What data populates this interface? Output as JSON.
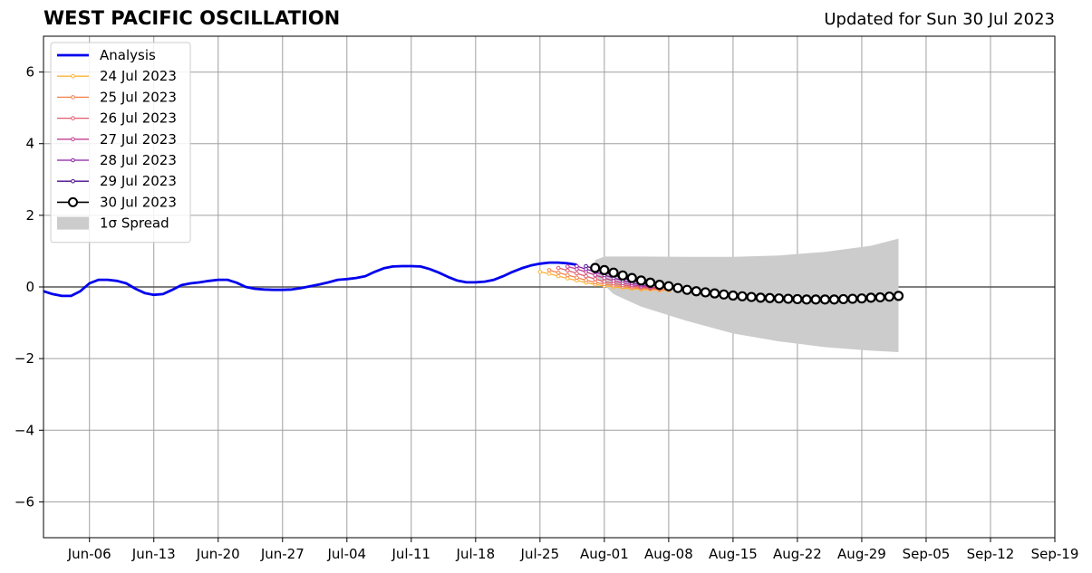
{
  "title": "WEST PACIFIC OSCILLATION",
  "subtitle": "Updated for Sun 30 Jul 2023",
  "chart_data": {
    "type": "line",
    "title": "WEST PACIFIC OSCILLATION",
    "xlabel": "",
    "ylabel": "",
    "x_range": [
      "2023-06-01",
      "2023-09-19"
    ],
    "ylim": [
      -7,
      7
    ],
    "grid": true,
    "legend_position": "top-left",
    "x_ticks": [
      "Jun-06",
      "Jun-13",
      "Jun-20",
      "Jun-27",
      "Jul-04",
      "Jul-11",
      "Jul-18",
      "Jul-25",
      "Aug-01",
      "Aug-08",
      "Aug-15",
      "Aug-22",
      "Aug-29",
      "Sep-05",
      "Sep-12",
      "Sep-19"
    ],
    "x_tick_dates": [
      "2023-06-06",
      "2023-06-13",
      "2023-06-20",
      "2023-06-27",
      "2023-07-04",
      "2023-07-11",
      "2023-07-18",
      "2023-07-25",
      "2023-08-01",
      "2023-08-08",
      "2023-08-15",
      "2023-08-22",
      "2023-08-29",
      "2023-09-05",
      "2023-09-12",
      "2023-09-19"
    ],
    "y_ticks": [
      -6,
      -4,
      -2,
      0,
      2,
      4,
      6
    ],
    "y_tick_labels": [
      "−6",
      "−4",
      "−2",
      "0",
      "2",
      "4",
      "6"
    ],
    "zero_line": 0,
    "analysis": {
      "name": "Analysis",
      "color": "#0000ee",
      "points": [
        [
          "2023-06-01",
          -0.12
        ],
        [
          "2023-06-02",
          -0.2
        ],
        [
          "2023-06-03",
          -0.25
        ],
        [
          "2023-06-04",
          -0.25
        ],
        [
          "2023-06-05",
          -0.12
        ],
        [
          "2023-06-06",
          0.1
        ],
        [
          "2023-06-07",
          0.2
        ],
        [
          "2023-06-08",
          0.2
        ],
        [
          "2023-06-09",
          0.17
        ],
        [
          "2023-06-10",
          0.1
        ],
        [
          "2023-06-11",
          -0.05
        ],
        [
          "2023-06-12",
          -0.17
        ],
        [
          "2023-06-13",
          -0.22
        ],
        [
          "2023-06-14",
          -0.2
        ],
        [
          "2023-06-15",
          -0.08
        ],
        [
          "2023-06-16",
          0.05
        ],
        [
          "2023-06-17",
          0.1
        ],
        [
          "2023-06-18",
          0.13
        ],
        [
          "2023-06-19",
          0.17
        ],
        [
          "2023-06-20",
          0.2
        ],
        [
          "2023-06-21",
          0.2
        ],
        [
          "2023-06-22",
          0.12
        ],
        [
          "2023-06-23",
          0.0
        ],
        [
          "2023-06-24",
          -0.05
        ],
        [
          "2023-06-25",
          -0.07
        ],
        [
          "2023-06-26",
          -0.08
        ],
        [
          "2023-06-27",
          -0.08
        ],
        [
          "2023-06-28",
          -0.07
        ],
        [
          "2023-06-29",
          -0.03
        ],
        [
          "2023-06-30",
          0.02
        ],
        [
          "2023-07-01",
          0.07
        ],
        [
          "2023-07-02",
          0.13
        ],
        [
          "2023-07-03",
          0.2
        ],
        [
          "2023-07-04",
          0.22
        ],
        [
          "2023-07-05",
          0.25
        ],
        [
          "2023-07-06",
          0.3
        ],
        [
          "2023-07-07",
          0.42
        ],
        [
          "2023-07-08",
          0.52
        ],
        [
          "2023-07-09",
          0.57
        ],
        [
          "2023-07-10",
          0.58
        ],
        [
          "2023-07-11",
          0.58
        ],
        [
          "2023-07-12",
          0.57
        ],
        [
          "2023-07-13",
          0.5
        ],
        [
          "2023-07-14",
          0.4
        ],
        [
          "2023-07-15",
          0.28
        ],
        [
          "2023-07-16",
          0.18
        ],
        [
          "2023-07-17",
          0.13
        ],
        [
          "2023-07-18",
          0.13
        ],
        [
          "2023-07-19",
          0.15
        ],
        [
          "2023-07-20",
          0.2
        ],
        [
          "2023-07-21",
          0.3
        ],
        [
          "2023-07-22",
          0.42
        ],
        [
          "2023-07-23",
          0.52
        ],
        [
          "2023-07-24",
          0.6
        ],
        [
          "2023-07-25",
          0.65
        ],
        [
          "2023-07-26",
          0.68
        ],
        [
          "2023-07-27",
          0.68
        ],
        [
          "2023-07-28",
          0.66
        ],
        [
          "2023-07-29",
          0.62
        ]
      ]
    },
    "forecasts": [
      {
        "name": "24 Jul 2023",
        "color": "#fcb33a",
        "points": [
          [
            "2023-07-25",
            0.42
          ],
          [
            "2023-07-26",
            0.37
          ],
          [
            "2023-07-27",
            0.3
          ],
          [
            "2023-07-28",
            0.24
          ],
          [
            "2023-07-29",
            0.18
          ],
          [
            "2023-07-30",
            0.12
          ],
          [
            "2023-07-31",
            0.07
          ],
          [
            "2023-08-01",
            0.03
          ],
          [
            "2023-08-02",
            0.0
          ],
          [
            "2023-08-03",
            -0.03
          ],
          [
            "2023-08-04",
            -0.05
          ],
          [
            "2023-08-05",
            -0.07
          ],
          [
            "2023-08-06",
            -0.08
          ],
          [
            "2023-08-07",
            -0.09
          ],
          [
            "2023-08-08",
            -0.1
          ]
        ]
      },
      {
        "name": "25 Jul 2023",
        "color": "#f4824a",
        "points": [
          [
            "2023-07-26",
            0.47
          ],
          [
            "2023-07-27",
            0.4
          ],
          [
            "2023-07-28",
            0.33
          ],
          [
            "2023-07-29",
            0.26
          ],
          [
            "2023-07-30",
            0.19
          ],
          [
            "2023-07-31",
            0.13
          ],
          [
            "2023-08-01",
            0.08
          ],
          [
            "2023-08-02",
            0.04
          ],
          [
            "2023-08-03",
            0.01
          ],
          [
            "2023-08-04",
            -0.02
          ],
          [
            "2023-08-05",
            -0.04
          ],
          [
            "2023-08-06",
            -0.05
          ],
          [
            "2023-08-07",
            -0.07
          ],
          [
            "2023-08-08",
            -0.08
          ]
        ]
      },
      {
        "name": "26 Jul 2023",
        "color": "#e35a6c",
        "points": [
          [
            "2023-07-27",
            0.53
          ],
          [
            "2023-07-28",
            0.46
          ],
          [
            "2023-07-29",
            0.38
          ],
          [
            "2023-07-30",
            0.3
          ],
          [
            "2023-07-31",
            0.22
          ],
          [
            "2023-08-01",
            0.15
          ],
          [
            "2023-08-02",
            0.1
          ],
          [
            "2023-08-03",
            0.05
          ],
          [
            "2023-08-04",
            0.02
          ],
          [
            "2023-08-05",
            -0.01
          ],
          [
            "2023-08-06",
            -0.03
          ],
          [
            "2023-08-07",
            -0.05
          ]
        ]
      },
      {
        "name": "27 Jul 2023",
        "color": "#c23d8e",
        "points": [
          [
            "2023-07-28",
            0.57
          ],
          [
            "2023-07-29",
            0.5
          ],
          [
            "2023-07-30",
            0.42
          ],
          [
            "2023-07-31",
            0.33
          ],
          [
            "2023-08-01",
            0.25
          ],
          [
            "2023-08-02",
            0.17
          ],
          [
            "2023-08-03",
            0.11
          ],
          [
            "2023-08-04",
            0.06
          ],
          [
            "2023-08-05",
            0.02
          ],
          [
            "2023-08-06",
            -0.01
          ],
          [
            "2023-08-07",
            -0.03
          ]
        ]
      },
      {
        "name": "28 Jul 2023",
        "color": "#8b1fa8",
        "points": [
          [
            "2023-07-29",
            0.58
          ],
          [
            "2023-07-30",
            0.5
          ],
          [
            "2023-07-31",
            0.42
          ],
          [
            "2023-08-01",
            0.33
          ],
          [
            "2023-08-02",
            0.25
          ],
          [
            "2023-08-03",
            0.18
          ],
          [
            "2023-08-04",
            0.11
          ],
          [
            "2023-08-05",
            0.06
          ],
          [
            "2023-08-06",
            0.02
          ]
        ]
      },
      {
        "name": "29 Jul 2023",
        "color": "#4a0c8a",
        "points": [
          [
            "2023-07-30",
            0.58
          ],
          [
            "2023-07-31",
            0.5
          ],
          [
            "2023-08-01",
            0.41
          ],
          [
            "2023-08-02",
            0.33
          ],
          [
            "2023-08-03",
            0.25
          ],
          [
            "2023-08-04",
            0.18
          ],
          [
            "2023-08-05",
            0.12
          ],
          [
            "2023-08-06",
            0.07
          ]
        ]
      }
    ],
    "latest_forecast": {
      "name": "30 Jul 2023",
      "color": "#000000",
      "marker_fill": "#ffffff",
      "points": [
        [
          "2023-07-31",
          0.53
        ],
        [
          "2023-08-01",
          0.47
        ],
        [
          "2023-08-02",
          0.4
        ],
        [
          "2023-08-03",
          0.32
        ],
        [
          "2023-08-04",
          0.25
        ],
        [
          "2023-08-05",
          0.18
        ],
        [
          "2023-08-06",
          0.12
        ],
        [
          "2023-08-07",
          0.06
        ],
        [
          "2023-08-08",
          0.02
        ],
        [
          "2023-08-09",
          -0.03
        ],
        [
          "2023-08-10",
          -0.08
        ],
        [
          "2023-08-11",
          -0.12
        ],
        [
          "2023-08-12",
          -0.15
        ],
        [
          "2023-08-13",
          -0.18
        ],
        [
          "2023-08-14",
          -0.21
        ],
        [
          "2023-08-15",
          -0.24
        ],
        [
          "2023-08-16",
          -0.26
        ],
        [
          "2023-08-17",
          -0.28
        ],
        [
          "2023-08-18",
          -0.3
        ],
        [
          "2023-08-19",
          -0.31
        ],
        [
          "2023-08-20",
          -0.32
        ],
        [
          "2023-08-21",
          -0.33
        ],
        [
          "2023-08-22",
          -0.34
        ],
        [
          "2023-08-23",
          -0.35
        ],
        [
          "2023-08-24",
          -0.35
        ],
        [
          "2023-08-25",
          -0.35
        ],
        [
          "2023-08-26",
          -0.35
        ],
        [
          "2023-08-27",
          -0.34
        ],
        [
          "2023-08-28",
          -0.33
        ],
        [
          "2023-08-29",
          -0.32
        ],
        [
          "2023-08-30",
          -0.3
        ],
        [
          "2023-08-31",
          -0.29
        ],
        [
          "2023-09-01",
          -0.27
        ],
        [
          "2023-09-02",
          -0.25
        ]
      ]
    },
    "spread": {
      "name": "1σ Spread",
      "color": "#cccccc",
      "upper": [
        [
          "2023-07-31",
          0.75
        ],
        [
          "2023-08-01",
          0.85
        ],
        [
          "2023-08-05",
          0.85
        ],
        [
          "2023-08-10",
          0.84
        ],
        [
          "2023-08-15",
          0.84
        ],
        [
          "2023-08-20",
          0.88
        ],
        [
          "2023-08-25",
          0.98
        ],
        [
          "2023-08-30",
          1.15
        ],
        [
          "2023-09-02",
          1.35
        ]
      ],
      "lower": [
        [
          "2023-07-31",
          0.3
        ],
        [
          "2023-08-02",
          -0.2
        ],
        [
          "2023-08-05",
          -0.55
        ],
        [
          "2023-08-10",
          -0.95
        ],
        [
          "2023-08-15",
          -1.3
        ],
        [
          "2023-08-20",
          -1.52
        ],
        [
          "2023-08-25",
          -1.68
        ],
        [
          "2023-08-30",
          -1.78
        ],
        [
          "2023-09-02",
          -1.82
        ]
      ]
    },
    "legend": [
      {
        "label": "Analysis",
        "kind": "analysis",
        "color": "#0000ee"
      },
      {
        "label": "24 Jul 2023",
        "kind": "forecast",
        "color": "#fcb33a"
      },
      {
        "label": "25 Jul 2023",
        "kind": "forecast",
        "color": "#f4824a"
      },
      {
        "label": "26 Jul 2023",
        "kind": "forecast",
        "color": "#e35a6c"
      },
      {
        "label": "27 Jul 2023",
        "kind": "forecast",
        "color": "#c23d8e"
      },
      {
        "label": "28 Jul 2023",
        "kind": "forecast",
        "color": "#8b1fa8"
      },
      {
        "label": "29 Jul 2023",
        "kind": "forecast",
        "color": "#4a0c8a"
      },
      {
        "label": "30 Jul 2023",
        "kind": "latest",
        "color": "#000000"
      },
      {
        "label": "1σ Spread",
        "kind": "spread",
        "color": "#cccccc"
      }
    ]
  }
}
